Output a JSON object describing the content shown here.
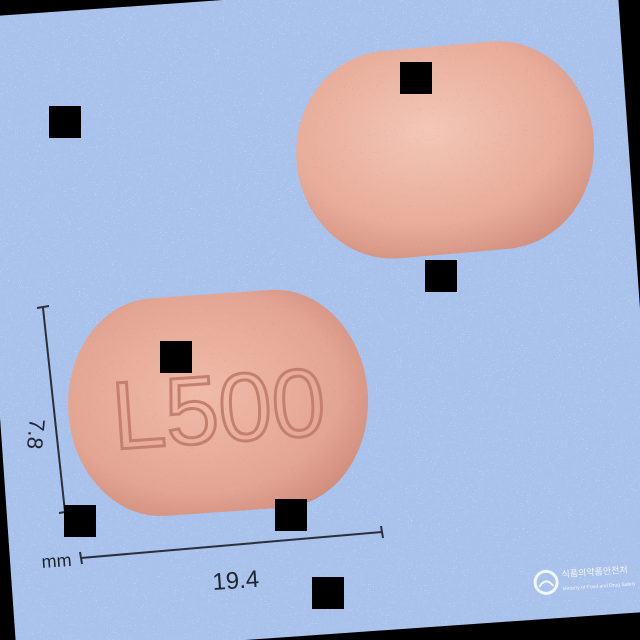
{
  "pill": {
    "imprint": "L500"
  },
  "measurements": {
    "width": "19.4",
    "height": "7.8",
    "unit": "mm"
  },
  "watermark": {
    "line1": "식품의약품안전처",
    "line2": "Ministry of Food and Drug Safety"
  },
  "colors": {
    "background": "#a8c2ec",
    "pill": "#e6a897",
    "pill_light": "#f0c0b0",
    "pill_shadow": "#c98676",
    "imprint": "#c98a7a",
    "ruler": "#2a2f3a",
    "occlusion": "#000000"
  }
}
